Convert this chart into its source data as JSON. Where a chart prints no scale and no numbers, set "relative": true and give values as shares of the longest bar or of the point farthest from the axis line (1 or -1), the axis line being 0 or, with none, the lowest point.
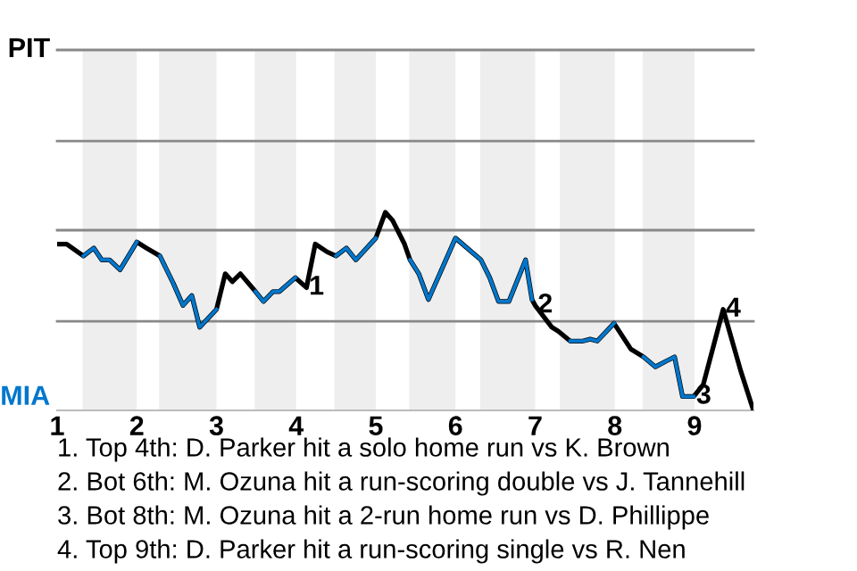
{
  "chart_data": {
    "type": "line",
    "relative": true,
    "x": [
      1.0,
      1.12,
      1.33,
      1.46,
      1.56,
      1.66,
      1.79,
      2.0,
      2.12,
      2.29,
      2.46,
      2.58,
      2.69,
      2.79,
      3.0,
      3.11,
      3.2,
      3.3,
      3.49,
      3.59,
      3.71,
      3.79,
      3.99,
      4.13,
      4.24,
      4.39,
      4.5,
      4.63,
      4.75,
      5.0,
      5.12,
      5.21,
      5.36,
      5.43,
      5.54,
      5.66,
      6.0,
      6.32,
      6.43,
      6.54,
      6.67,
      6.88,
      6.96,
      7.0,
      7.21,
      7.29,
      7.44,
      7.6,
      7.69,
      7.78,
      7.99,
      8.2,
      8.36,
      8.51,
      8.65,
      8.75,
      8.85,
      8.99,
      9.11,
      9.36,
      9.58,
      9.74
    ],
    "series": [
      {
        "color": "#000000",
        "values": [
          0.84,
          0.84,
          0.78,
          0.82,
          0.76,
          0.76,
          0.71,
          0.85,
          0.82,
          0.78,
          0.64,
          0.53,
          0.58,
          0.42,
          0.51,
          0.69,
          0.65,
          0.69,
          0.6,
          0.55,
          0.6,
          0.6,
          0.67,
          0.62,
          0.84,
          0.8,
          0.78,
          0.82,
          0.76,
          0.87,
          1,
          0.96,
          0.84,
          0.76,
          0.69,
          0.56,
          0.87,
          0.76,
          0.67,
          0.55,
          0.55,
          0.76,
          0.56,
          0.53,
          0.42,
          0.4,
          0.35,
          0.35,
          0.36,
          0.35,
          0.44,
          0.31,
          0.27,
          0.22,
          0.25,
          0.27,
          0.07,
          0.07,
          0.13,
          0.51,
          0.2,
          0
        ]
      },
      {
        "color": "#0077cc",
        "values": [
          null,
          null,
          0.78,
          0.82,
          0.76,
          0.76,
          0.71,
          0.85,
          null,
          0.78,
          0.64,
          0.53,
          0.58,
          0.42,
          0.51,
          null,
          null,
          null,
          0.6,
          0.55,
          0.6,
          0.6,
          0.67,
          null,
          null,
          null,
          0.78,
          0.82,
          0.76,
          0.87,
          null,
          null,
          null,
          0.76,
          0.69,
          0.56,
          0.87,
          0.76,
          0.67,
          0.55,
          0.55,
          0.76,
          0.56,
          null,
          null,
          null,
          0.35,
          0.35,
          0.36,
          0.35,
          0.44,
          null,
          0.27,
          0.22,
          0.25,
          0.27,
          0.07,
          0.07,
          null,
          null,
          null,
          null
        ]
      }
    ],
    "xlim": [
      1,
      9.74
    ],
    "xticks": [
      1,
      2,
      3,
      4,
      5,
      6,
      7,
      8,
      9
    ],
    "ref_lines": [
      {
        "axis": "y",
        "value": 0.45,
        "label": null,
        "color": "#888888"
      },
      {
        "axis": "y",
        "value": 0.91,
        "label": null,
        "color": "#888888"
      },
      {
        "axis": "y",
        "value": 1.36,
        "label": null,
        "color": "#888888"
      },
      {
        "axis": "y",
        "value": 1.82,
        "label": "PIT",
        "color": "#888888"
      }
    ],
    "marker": "none",
    "line_style": "solid",
    "bands": [
      {
        "axis": "x",
        "from": 1.32,
        "to": 2.0,
        "color": "#eeeeee"
      },
      {
        "axis": "x",
        "from": 2.28,
        "to": 3.0,
        "color": "#eeeeee"
      },
      {
        "axis": "x",
        "from": 3.48,
        "to": 4.0,
        "color": "#eeeeee"
      },
      {
        "axis": "x",
        "from": 4.48,
        "to": 5.0,
        "color": "#eeeeee"
      },
      {
        "axis": "x",
        "from": 5.42,
        "to": 6.0,
        "color": "#eeeeee"
      },
      {
        "axis": "x",
        "from": 6.31,
        "to": 7.0,
        "color": "#eeeeee"
      },
      {
        "axis": "x",
        "from": 7.31,
        "to": 8.0,
        "color": "#eeeeee"
      },
      {
        "axis": "x",
        "from": 8.35,
        "to": 9.0,
        "color": "#eeeeee"
      }
    ],
    "annotations": [
      "MIA",
      {
        "text": "1",
        "x": 4.13,
        "y": 0.62
      },
      {
        "text": "2",
        "x": 7.0,
        "y": 0.53
      },
      {
        "text": "3",
        "x": 8.99,
        "y": 0.07
      },
      {
        "text": "4",
        "x": 9.36,
        "y": 0.51
      },
      "1. Top 4th: D. Parker hit a solo home run vs K. Brown",
      "2. Bot 6th: M. Ozuna hit a run-scoring double vs J. Tannehill",
      "3. Bot 8th: M. Ozuna hit a 2-run home run vs D. Phillippe",
      "4. Top 9th: D. Parker hit a run-scoring single vs R. Nen"
    ]
  }
}
